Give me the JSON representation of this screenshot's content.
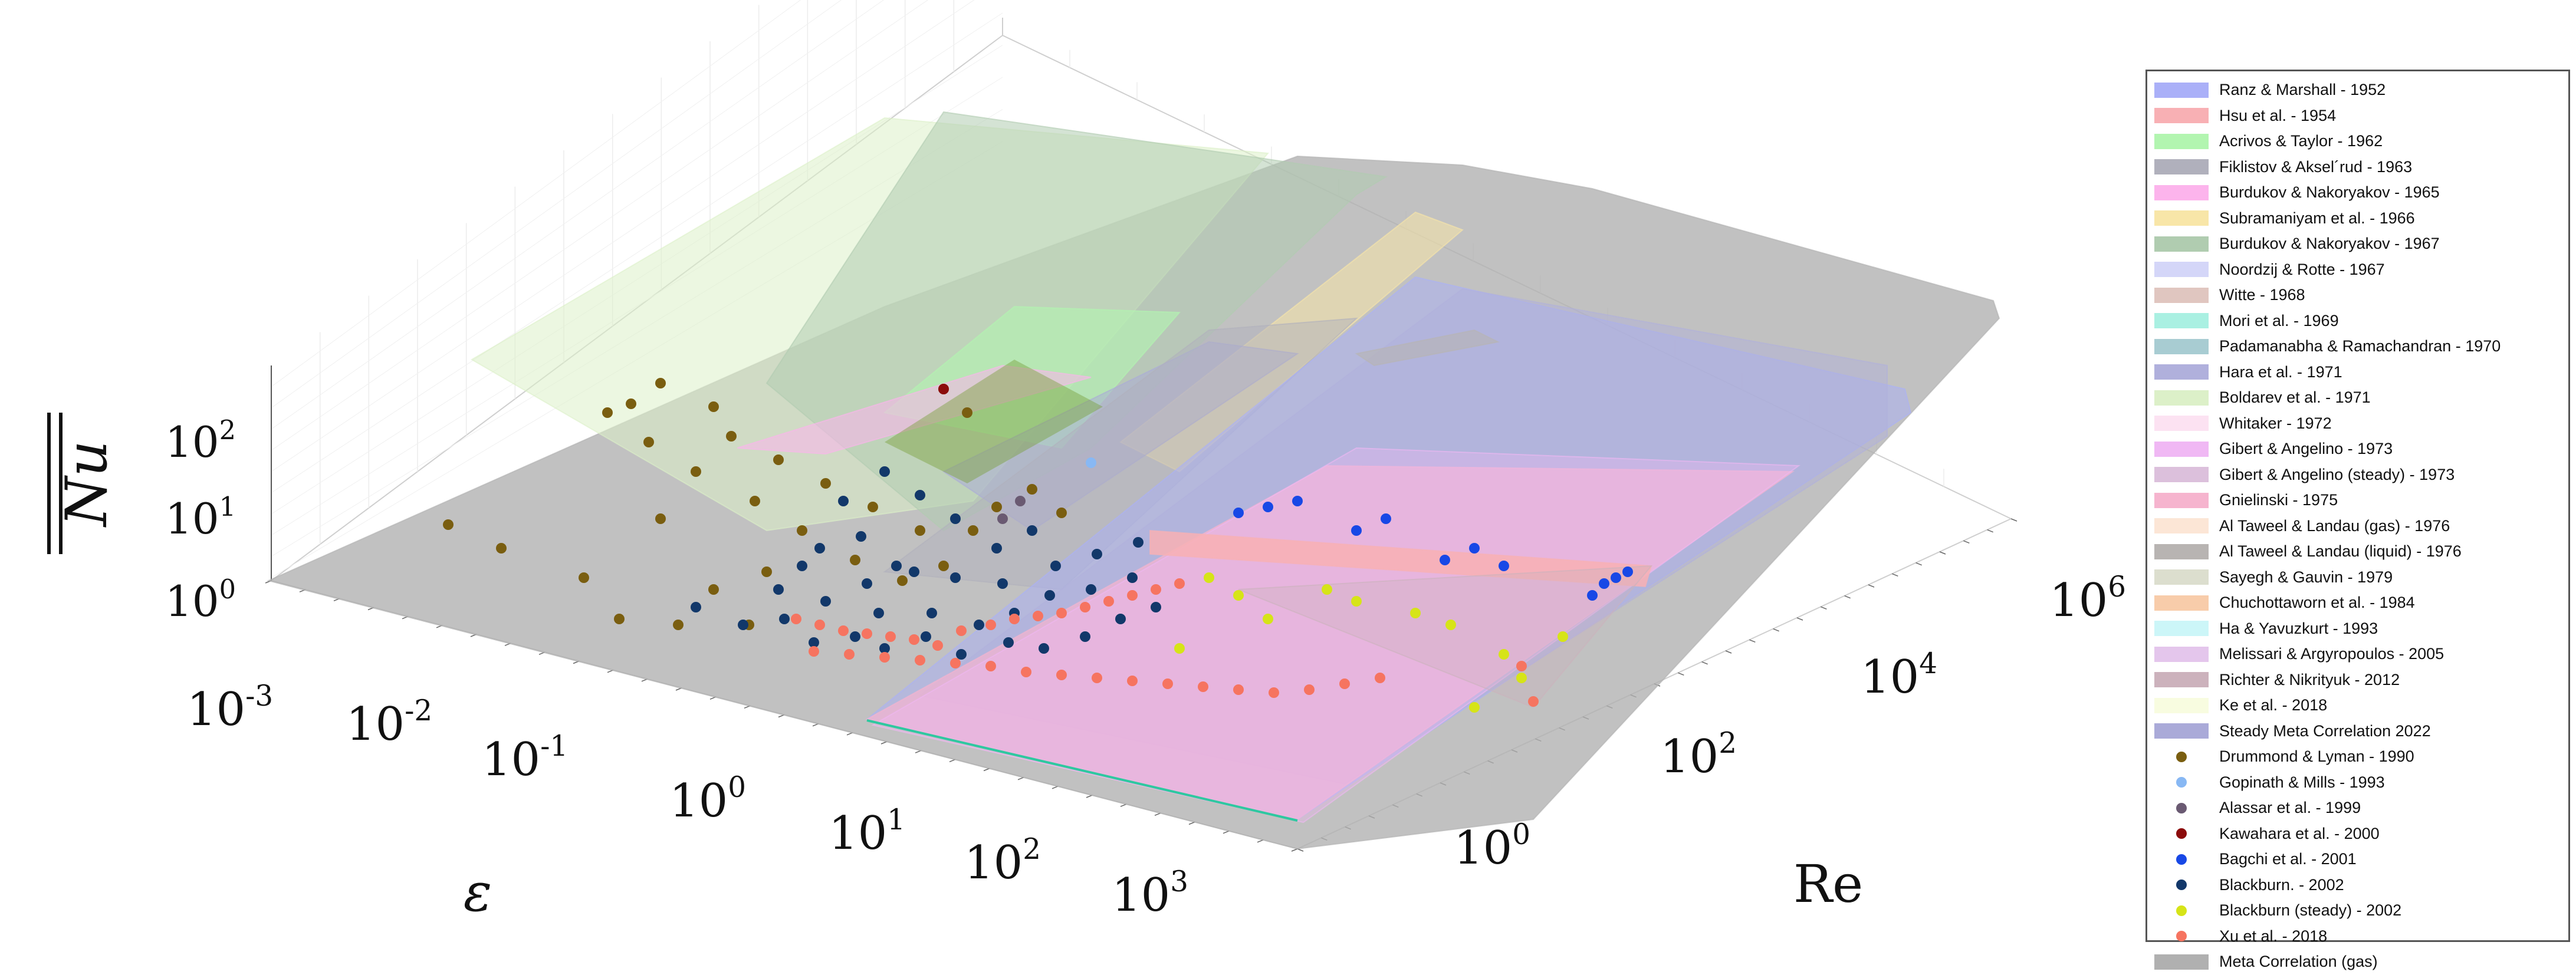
{
  "chart_data": {
    "type": "surface3d",
    "title": "",
    "zlabel": "$\\overline{\\overline{Nu}}$",
    "xlabel": "ε",
    "ylabel": "Re",
    "axes": {
      "epsilon": {
        "scale": "log",
        "ticks": [
          "10-3",
          "10-2",
          "10-1",
          "100",
          "101",
          "102",
          "103"
        ]
      },
      "Re": {
        "scale": "log",
        "ticks": [
          "100",
          "102",
          "104",
          "106"
        ]
      },
      "Nu": {
        "scale": "log",
        "ticks": [
          "100",
          "101",
          "102"
        ]
      }
    },
    "grid": true,
    "legend_position": "right",
    "series": [
      {
        "name": "Ranz & Marshall - 1952",
        "kind": "patch",
        "color": "#aab0f8"
      },
      {
        "name": "Hsu et al. - 1954",
        "kind": "patch",
        "color": "#f8b0b4"
      },
      {
        "name": "Acrivos & Taylor - 1962",
        "kind": "patch",
        "color": "#b2f5b0"
      },
      {
        "name": "Fiklistov & Aksel´rud - 1963",
        "kind": "patch",
        "color": "#b0b0bc"
      },
      {
        "name": "Burdukov & Nakoryakov - 1965",
        "kind": "patch",
        "color": "#fcb4ec"
      },
      {
        "name": "Subramaniyam et al. - 1966",
        "kind": "patch",
        "color": "#f8e6a8"
      },
      {
        "name": "Burdukov & Nakoryakov - 1967",
        "kind": "patch",
        "color": "#b0ccb0"
      },
      {
        "name": "Noordzij & Rotte - 1967",
        "kind": "patch",
        "color": "#d4d6f8"
      },
      {
        "name": "Witte - 1968",
        "kind": "patch",
        "color": "#e0c6c0"
      },
      {
        "name": "Mori et al. - 1969",
        "kind": "patch",
        "color": "#aaf0e2"
      },
      {
        "name": "Padamanabha & Ramachandran - 1970",
        "kind": "patch",
        "color": "#a8ccd2"
      },
      {
        "name": "Hara et al. - 1971",
        "kind": "patch",
        "color": "#b0b0dc"
      },
      {
        "name": "Boldarev et al. - 1971",
        "kind": "patch",
        "color": "#dcf0c8"
      },
      {
        "name": "Whitaker - 1972",
        "kind": "patch",
        "color": "#fce2f2"
      },
      {
        "name": "Gibert & Angelino - 1973",
        "kind": "patch",
        "color": "#f0b8f4"
      },
      {
        "name": "Gibert & Angelino (steady) - 1973",
        "kind": "patch",
        "color": "#dcc0dc"
      },
      {
        "name": "Gnielinski - 1975",
        "kind": "patch",
        "color": "#f6b4ce"
      },
      {
        "name": "Al Taweel & Landau (gas) - 1976",
        "kind": "patch",
        "color": "#fce6d6"
      },
      {
        "name": "Al Taweel & Landau (liquid) - 1976",
        "kind": "patch",
        "color": "#b8b4b2"
      },
      {
        "name": "Sayegh & Gauvin - 1979",
        "kind": "patch",
        "color": "#dcdece"
      },
      {
        "name": "Chuchottaworn et al. - 1984",
        "kind": "patch",
        "color": "#f8ccaa"
      },
      {
        "name": "Ha & Yavuzkurt - 1993",
        "kind": "patch",
        "color": "#ccf6f8"
      },
      {
        "name": "Melissari & Argyropoulos - 2005",
        "kind": "patch",
        "color": "#e4c6ec"
      },
      {
        "name": "Richter & Nikrityuk - 2012",
        "kind": "patch",
        "color": "#ccb2bc"
      },
      {
        "name": "Ke et al. - 2018",
        "kind": "patch",
        "color": "#f8fce0"
      },
      {
        "name": "Steady Meta Correlation 2022",
        "kind": "patch",
        "color": "#aaaad8"
      },
      {
        "name": "Drummond & Lyman - 1990",
        "kind": "marker",
        "color": "#7a5e10"
      },
      {
        "name": "Gopinath & Mills - 1993",
        "kind": "marker",
        "color": "#88b8f4"
      },
      {
        "name": "Alassar et al. - 1999",
        "kind": "marker",
        "color": "#6a5a72"
      },
      {
        "name": "Kawahara et al. - 2000",
        "kind": "marker",
        "color": "#8c0c0c"
      },
      {
        "name": "Bagchi et al. - 2001",
        "kind": "marker",
        "color": "#1848e6"
      },
      {
        "name": "Blackburn. - 2002",
        "kind": "marker",
        "color": "#12386a"
      },
      {
        "name": "Blackburn (steady) - 2002",
        "kind": "marker",
        "color": "#d6e418"
      },
      {
        "name": "Xu et al. - 2018",
        "kind": "marker",
        "color": "#f67460"
      },
      {
        "name": "Meta Correlation (gas)",
        "kind": "patch",
        "color": "#b0b0b0"
      }
    ]
  }
}
